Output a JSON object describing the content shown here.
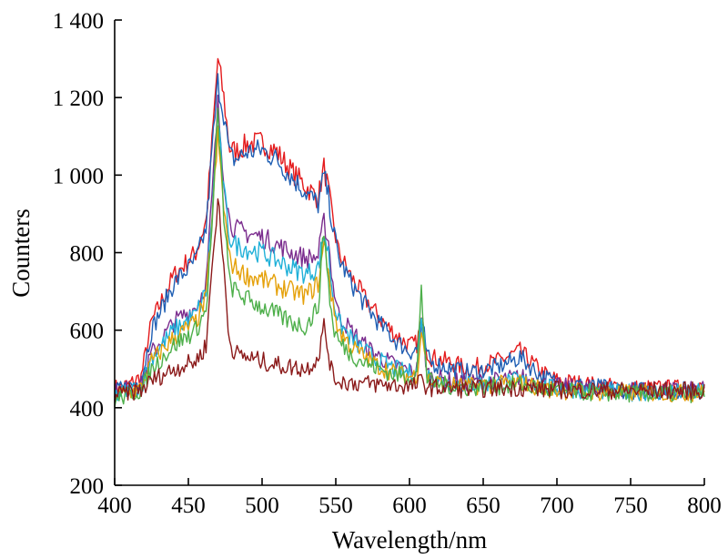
{
  "chart_data": {
    "type": "line",
    "title": "",
    "xlabel": "Wavelength/nm",
    "ylabel": "Counters",
    "xlim": [
      400,
      800
    ],
    "ylim": [
      200,
      1400
    ],
    "xticks": [
      400,
      450,
      500,
      550,
      600,
      650,
      700,
      750,
      800
    ],
    "xtick_labels": [
      "400",
      "450",
      "500",
      "550",
      "600",
      "650",
      "700",
      "750",
      "800"
    ],
    "yticks": [
      200,
      400,
      600,
      800,
      1000,
      1200,
      1400
    ],
    "ytick_labels": [
      "200",
      "400",
      "600",
      "800",
      "1 000",
      "1 200",
      "1 400"
    ],
    "grid": false,
    "legend": "none",
    "x": [
      400,
      410,
      418,
      425,
      440,
      455,
      462,
      466,
      470,
      474,
      478,
      482,
      490,
      500,
      510,
      520,
      530,
      538,
      542,
      545,
      548,
      552,
      560,
      570,
      580,
      590,
      600,
      605,
      608,
      610,
      612,
      615,
      625,
      640,
      660,
      675,
      690,
      700,
      720,
      750,
      780,
      800
    ],
    "series": [
      {
        "color": "#e41a1c",
        "values": [
          450,
          460,
          480,
          620,
          740,
          800,
          880,
          1080,
          1300,
          1200,
          1070,
          1060,
          1080,
          1085,
          1060,
          1010,
          970,
          940,
          1020,
          960,
          880,
          800,
          740,
          680,
          630,
          590,
          560,
          565,
          620,
          600,
          545,
          530,
          520,
          500,
          520,
          545,
          490,
          470,
          460,
          450,
          450,
          450
        ]
      },
      {
        "color": "#1f5fb4",
        "values": [
          440,
          455,
          470,
          600,
          720,
          780,
          860,
          1060,
          1240,
          1160,
          1050,
          1040,
          1060,
          1065,
          1040,
          995,
          955,
          925,
          1000,
          945,
          865,
          785,
          725,
          665,
          615,
          575,
          545,
          550,
          605,
          585,
          530,
          515,
          505,
          490,
          505,
          530,
          480,
          465,
          455,
          445,
          445,
          445
        ]
      },
      {
        "color": "#7b2d8e",
        "values": [
          440,
          450,
          460,
          540,
          620,
          660,
          720,
          940,
          1180,
          1000,
          880,
          860,
          850,
          840,
          820,
          800,
          785,
          790,
          880,
          830,
          720,
          640,
          600,
          560,
          530,
          510,
          495,
          500,
          600,
          560,
          490,
          480,
          470,
          465,
          470,
          480,
          460,
          455,
          450,
          445,
          445,
          445
        ]
      },
      {
        "color": "#1fb0d8",
        "values": [
          430,
          445,
          455,
          530,
          600,
          640,
          700,
          900,
          1140,
          960,
          840,
          820,
          810,
          800,
          780,
          760,
          745,
          760,
          850,
          800,
          690,
          620,
          580,
          545,
          520,
          500,
          490,
          495,
          620,
          580,
          485,
          475,
          465,
          460,
          465,
          470,
          455,
          450,
          445,
          440,
          440,
          440
        ]
      },
      {
        "color": "#e5a10a",
        "values": [
          430,
          440,
          450,
          520,
          580,
          620,
          680,
          880,
          1100,
          920,
          780,
          760,
          740,
          730,
          715,
          700,
          690,
          720,
          820,
          760,
          660,
          600,
          560,
          530,
          505,
          490,
          480,
          485,
          600,
          560,
          475,
          468,
          460,
          455,
          460,
          465,
          450,
          445,
          440,
          438,
          438,
          438
        ]
      },
      {
        "color": "#4daf4a",
        "values": [
          420,
          435,
          445,
          500,
          560,
          600,
          650,
          860,
          1160,
          900,
          720,
          700,
          680,
          660,
          640,
          620,
          610,
          660,
          860,
          720,
          610,
          570,
          540,
          515,
          500,
          485,
          480,
          490,
          700,
          580,
          475,
          465,
          458,
          452,
          456,
          460,
          448,
          444,
          440,
          436,
          436,
          436
        ]
      },
      {
        "color": "#8b1a1a",
        "values": [
          430,
          440,
          445,
          470,
          500,
          520,
          560,
          760,
          940,
          760,
          570,
          540,
          530,
          520,
          510,
          505,
          500,
          530,
          610,
          540,
          480,
          470,
          465,
          462,
          460,
          458,
          455,
          458,
          470,
          460,
          455,
          452,
          450,
          448,
          450,
          452,
          448,
          446,
          445,
          444,
          444,
          444
        ]
      }
    ]
  }
}
